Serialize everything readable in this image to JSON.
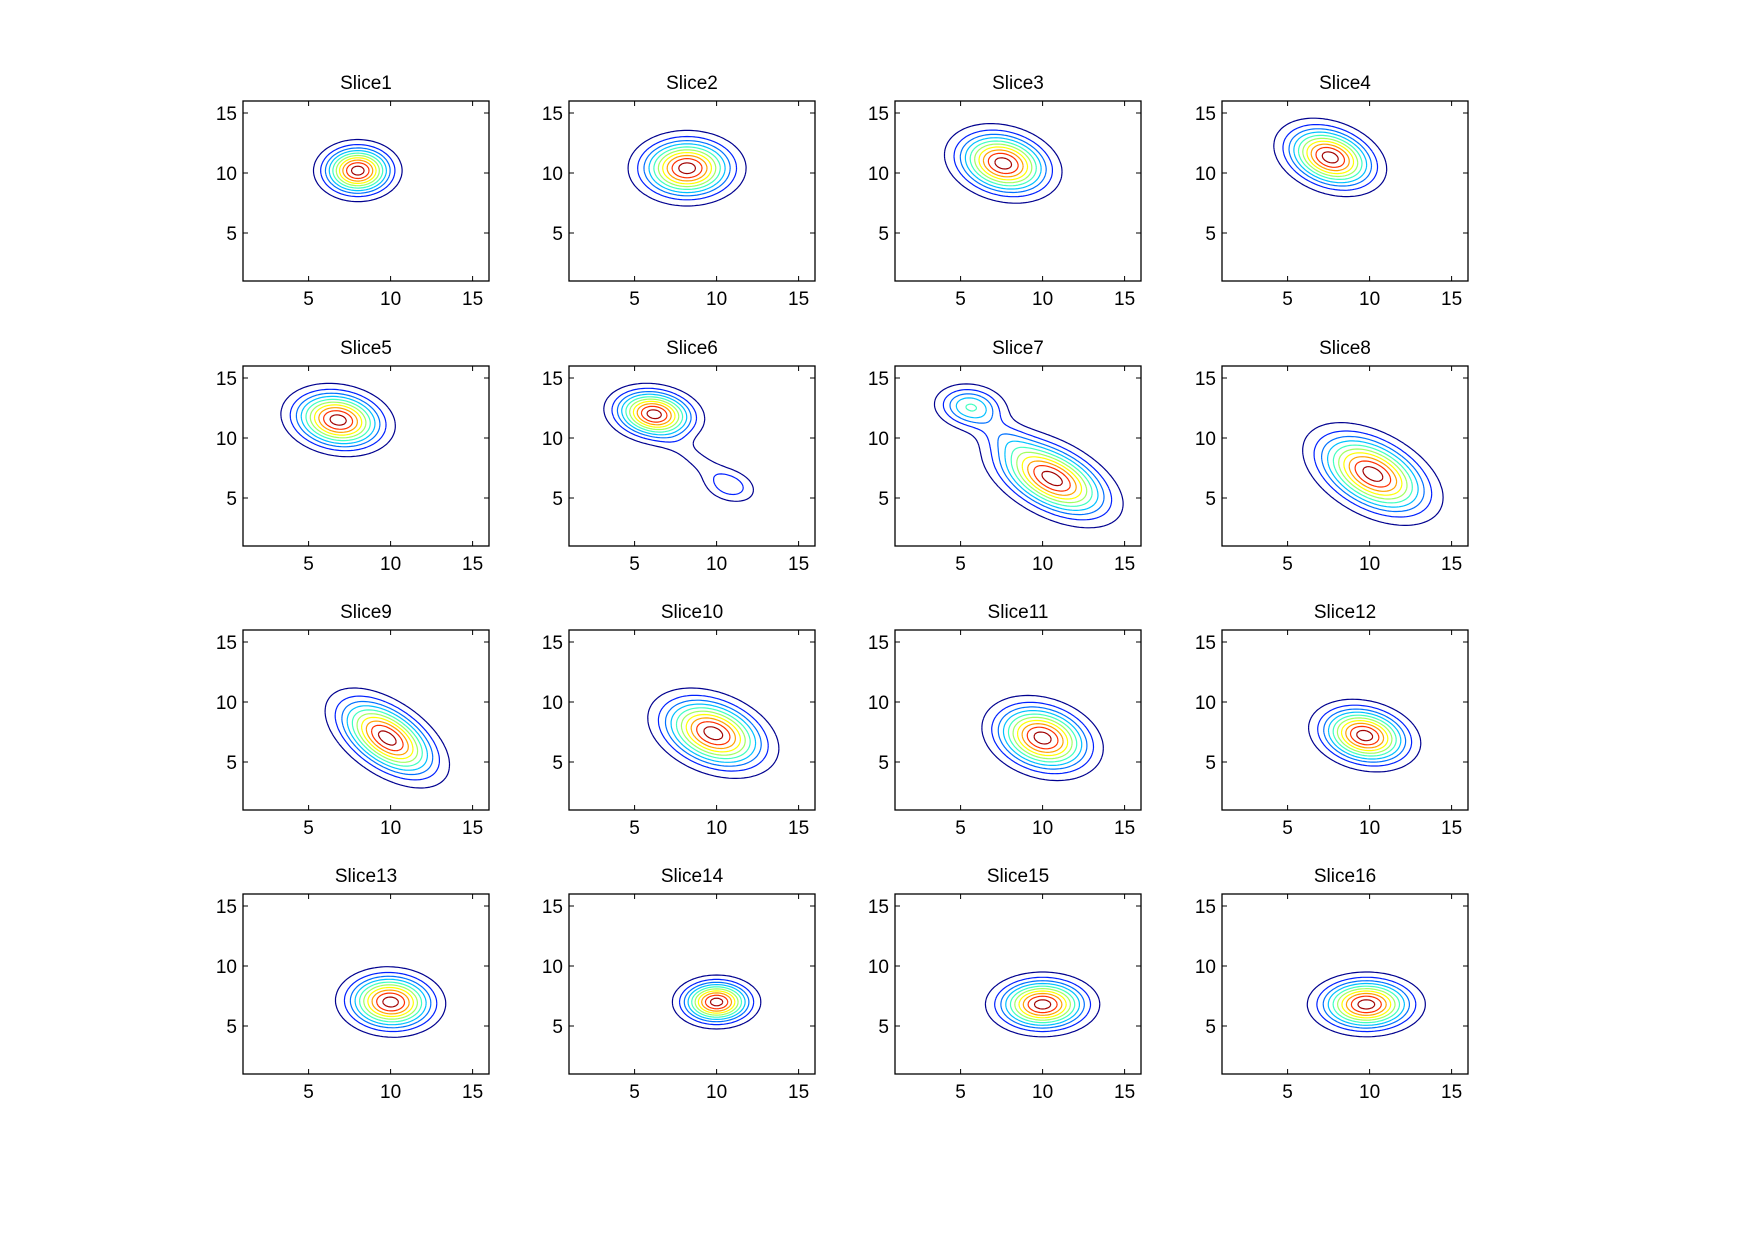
{
  "chart_data": {
    "type": "contour",
    "grid": "2x... 4 rows x 4 columns of subplots",
    "xlim": [
      1,
      16
    ],
    "ylim": [
      1,
      16
    ],
    "xticks": [
      5,
      10,
      15
    ],
    "yticks": [
      5,
      10,
      15
    ],
    "colormap": [
      "#00008f",
      "#0020ff",
      "#0070ff",
      "#00c0ff",
      "#40ffbf",
      "#a0ff60",
      "#ffff00",
      "#ffa000",
      "#ff3000",
      "#a00000",
      "#400000"
    ],
    "levels": [
      0.08,
      0.17,
      0.26,
      0.35,
      0.45,
      0.55,
      0.65,
      0.75,
      0.85,
      0.95
    ],
    "subplots": [
      {
        "title": "Slice1",
        "components": [
          {
            "cx": 8,
            "cy": 10.2,
            "sx": 1.2,
            "sy": 1.15,
            "angle": 0,
            "amp": 1
          }
        ]
      },
      {
        "title": "Slice2",
        "components": [
          {
            "cx": 8.2,
            "cy": 10.4,
            "sx": 1.6,
            "sy": 1.4,
            "angle": 0,
            "amp": 1
          }
        ]
      },
      {
        "title": "Slice3",
        "components": [
          {
            "cx": 7.6,
            "cy": 10.8,
            "sx": 1.7,
            "sy": 1.35,
            "angle": -35,
            "amp": 1
          }
        ]
      },
      {
        "title": "Slice4",
        "components": [
          {
            "cx": 7.6,
            "cy": 11.3,
            "sx": 1.7,
            "sy": 1.25,
            "angle": -40,
            "amp": 1
          }
        ]
      },
      {
        "title": "Slice5",
        "components": [
          {
            "cx": 6.8,
            "cy": 11.5,
            "sx": 1.6,
            "sy": 1.3,
            "angle": -25,
            "amp": 1
          }
        ]
      },
      {
        "title": "Slice6",
        "components": [
          {
            "cx": 6.2,
            "cy": 12,
            "sx": 1.4,
            "sy": 1.1,
            "angle": -20,
            "amp": 1
          },
          {
            "cx": 9,
            "cy": 8,
            "sx": 2.4,
            "sy": 0.7,
            "angle": -45,
            "amp": 0.1
          },
          {
            "cx": 10.8,
            "cy": 6,
            "sx": 1.0,
            "sy": 0.8,
            "angle": -30,
            "amp": 0.2
          }
        ]
      },
      {
        "title": "Slice7",
        "components": [
          {
            "cx": 5.6,
            "cy": 12.6,
            "sx": 1.2,
            "sy": 1.0,
            "angle": -20,
            "amp": 0.45
          },
          {
            "cx": 10.6,
            "cy": 6.6,
            "sx": 2.3,
            "sy": 1.3,
            "angle": -42,
            "amp": 1
          },
          {
            "cx": 7.8,
            "cy": 10,
            "sx": 1.6,
            "sy": 0.8,
            "angle": -45,
            "amp": 0.15
          }
        ]
      },
      {
        "title": "Slice8",
        "components": [
          {
            "cx": 10.2,
            "cy": 7,
            "sx": 2.3,
            "sy": 1.4,
            "angle": -45,
            "amp": 1
          }
        ]
      },
      {
        "title": "Slice9",
        "components": [
          {
            "cx": 9.8,
            "cy": 7,
            "sx": 2.2,
            "sy": 1.2,
            "angle": -50,
            "amp": 1
          }
        ]
      },
      {
        "title": "Slice10",
        "components": [
          {
            "cx": 9.8,
            "cy": 7.4,
            "sx": 2.0,
            "sy": 1.4,
            "angle": -40,
            "amp": 1
          }
        ]
      },
      {
        "title": "Slice11",
        "components": [
          {
            "cx": 10,
            "cy": 7,
            "sx": 1.8,
            "sy": 1.4,
            "angle": -40,
            "amp": 1
          }
        ]
      },
      {
        "title": "Slice12",
        "components": [
          {
            "cx": 9.7,
            "cy": 7.2,
            "sx": 1.6,
            "sy": 1.25,
            "angle": -30,
            "amp": 1
          }
        ]
      },
      {
        "title": "Slice13",
        "components": [
          {
            "cx": 10,
            "cy": 7,
            "sx": 1.5,
            "sy": 1.3,
            "angle": -10,
            "amp": 1
          }
        ]
      },
      {
        "title": "Slice14",
        "components": [
          {
            "cx": 10,
            "cy": 7,
            "sx": 1.2,
            "sy": 1.0,
            "angle": 0,
            "amp": 1
          }
        ]
      },
      {
        "title": "Slice15",
        "components": [
          {
            "cx": 10,
            "cy": 6.8,
            "sx": 1.55,
            "sy": 1.2,
            "angle": 0,
            "amp": 1
          }
        ]
      },
      {
        "title": "Slice16",
        "components": [
          {
            "cx": 9.8,
            "cy": 6.8,
            "sx": 1.6,
            "sy": 1.2,
            "angle": 0,
            "amp": 1
          }
        ]
      }
    ]
  }
}
